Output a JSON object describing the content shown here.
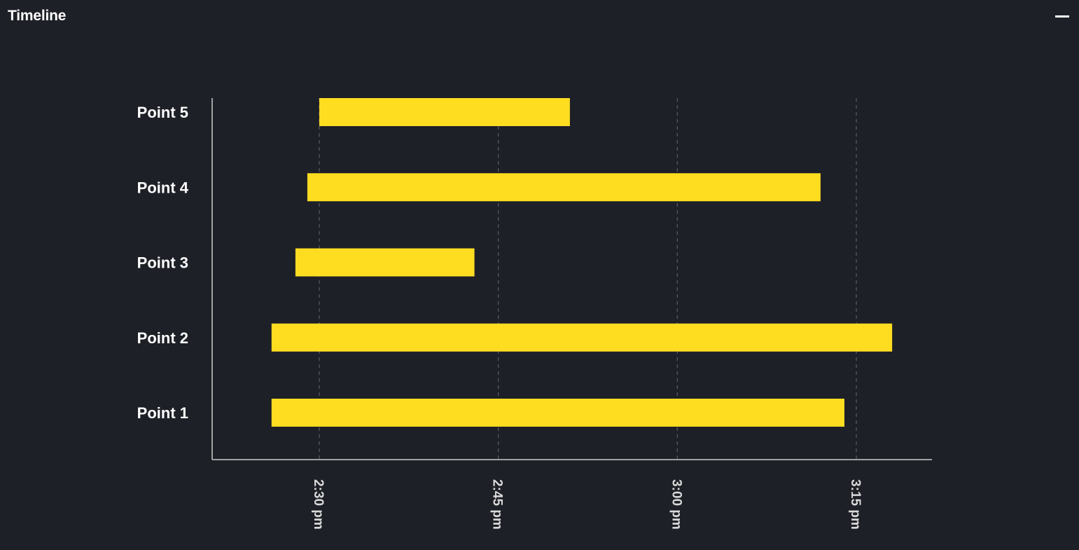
{
  "panel": {
    "title": "Timeline",
    "minimize_icon": "minus-icon"
  },
  "colors": {
    "background": "#1e2027",
    "bar": "#fedd21",
    "axis": "#cccccc",
    "grid": "#5a5d66",
    "text": "#ffffff"
  },
  "chart_data": {
    "type": "bar",
    "orientation": "horizontal",
    "title": "",
    "xlabel": "",
    "ylabel": "",
    "categories": [
      "Point 1",
      "Point 2",
      "Point 3",
      "Point 4",
      "Point 5"
    ],
    "series": [
      {
        "ranges": [
          {
            "category": "Point 1",
            "start": "2:26 pm",
            "end": "3:14 pm"
          },
          {
            "category": "Point 2",
            "start": "2:26 pm",
            "end": "3:18 pm"
          },
          {
            "category": "Point 3",
            "start": "2:28 pm",
            "end": "2:43 pm"
          },
          {
            "category": "Point 4",
            "start": "2:29 pm",
            "end": "3:12 pm"
          },
          {
            "category": "Point 5",
            "start": "2:30 pm",
            "end": "2:51 pm"
          }
        ]
      }
    ],
    "xticks": [
      "2:30 pm",
      "2:45 pm",
      "3:00 pm",
      "3:15 pm"
    ],
    "xlim": [
      "2:21 pm",
      "3:21 pm"
    ],
    "grid": {
      "x": true,
      "y": false,
      "style": "dashed"
    },
    "legend": "none"
  }
}
